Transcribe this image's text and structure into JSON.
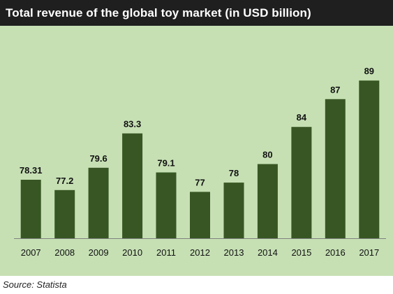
{
  "colors": {
    "title_bg": "#1f1f1f",
    "plot_bg": "#c6e0b4",
    "bar": "#375623",
    "text": "#111111"
  },
  "source_text": "Source: Statista",
  "chart_data": {
    "type": "bar",
    "title": "Total revenue of the global toy market (in USD billion)",
    "xlabel": "",
    "ylabel": "",
    "categories": [
      "2007",
      "2008",
      "2009",
      "2010",
      "2011",
      "2012",
      "2013",
      "2014",
      "2015",
      "2016",
      "2017"
    ],
    "values": [
      78.31,
      77.2,
      79.6,
      83.3,
      79.1,
      77,
      78,
      80,
      84,
      87,
      89
    ],
    "value_labels": [
      "78.31",
      "77.2",
      "79.6",
      "83.3",
      "79.1",
      "77",
      "78",
      "80",
      "84",
      "87",
      "89"
    ],
    "ylim": [
      72,
      91
    ],
    "grid": false,
    "legend": "none",
    "data_labels": true
  }
}
